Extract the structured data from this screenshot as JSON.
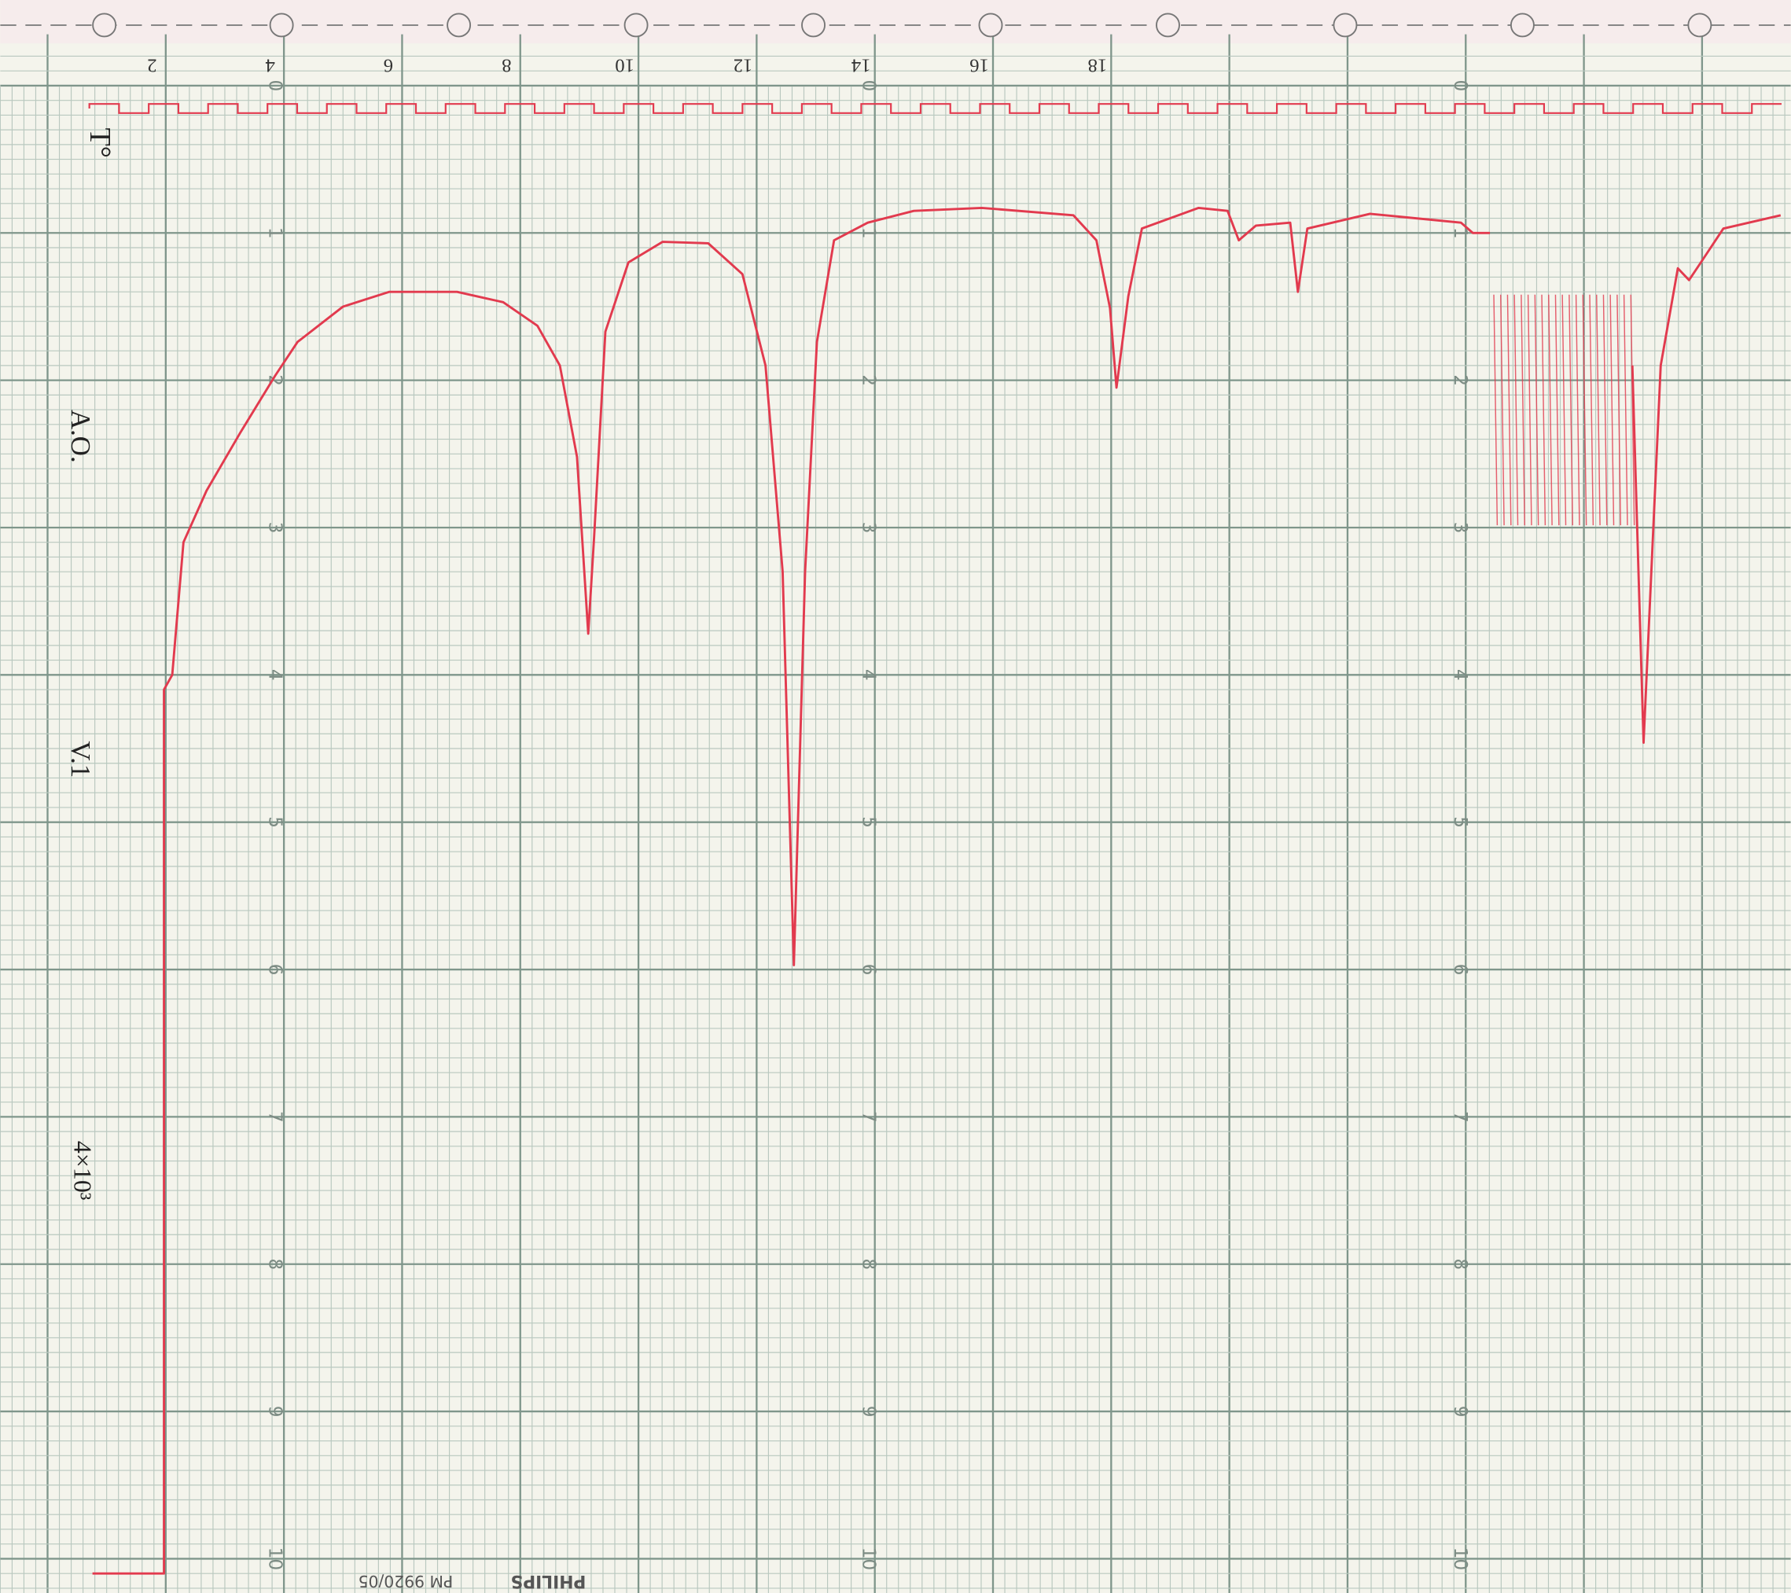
{
  "chart_data": {
    "type": "line",
    "annotations": [
      "T°",
      "A.O.",
      "V.1",
      "4×10³"
    ],
    "footer": [
      "PHILIPS",
      "PM 9920/05"
    ],
    "x": [
      0.76,
      1.97,
      1.97,
      2.11,
      2.3,
      2.69,
      3.27,
      3.85,
      4.23,
      5.0,
      5.78,
      6.93,
      7.71,
      8.29,
      8.67,
      8.96,
      9.15,
      9.25,
      9.44,
      9.83,
      10.41,
      11.18,
      11.76,
      12.15,
      12.44,
      12.63,
      12.82,
      13.02,
      13.31,
      13.88,
      14.66,
      15.81,
      17.36,
      17.75,
      17.98,
      18.09,
      18.29,
      18.52,
      19.48,
      19.97,
      20.16,
      20.45,
      21.03,
      21.16,
      21.32,
      22.38,
      23.92,
      24.12,
      24.41,
      25.5,
      26.82,
      27.01,
      27.3,
      27.59,
      27.78,
      27.98,
      28.36,
      29.33
    ],
    "series": [
      {
        "color": "#e23a4e",
        "values": [
          10.1,
          10.1,
          4.1,
          4.0,
          3.1,
          2.75,
          2.35,
          1.97,
          1.74,
          1.5,
          1.4,
          1.4,
          1.47,
          1.63,
          1.9,
          2.52,
          3.72,
          3.06,
          1.67,
          1.2,
          1.06,
          1.07,
          1.28,
          1.9,
          3.3,
          5.97,
          3.3,
          1.74,
          1.05,
          0.93,
          0.85,
          0.83,
          0.88,
          1.05,
          1.51,
          2.05,
          1.43,
          0.97,
          0.83,
          0.85,
          1.05,
          0.95,
          0.93,
          1.4,
          0.97,
          0.87,
          0.93,
          1.0,
          1.0,
          null,
          1.9,
          4.46,
          1.9,
          1.24,
          1.32,
          1.2,
          0.97,
          0.88
        ]
      }
    ],
    "xlim": [
      -0.8,
      29.5
    ],
    "ylim": [
      10,
      0
    ],
    "xticks": [
      2,
      4,
      6,
      8,
      10,
      12,
      14,
      16,
      18
    ],
    "yticks": [
      0,
      1,
      2,
      3,
      4,
      5,
      6,
      7,
      8,
      9,
      10
    ],
    "grid": true
  }
}
